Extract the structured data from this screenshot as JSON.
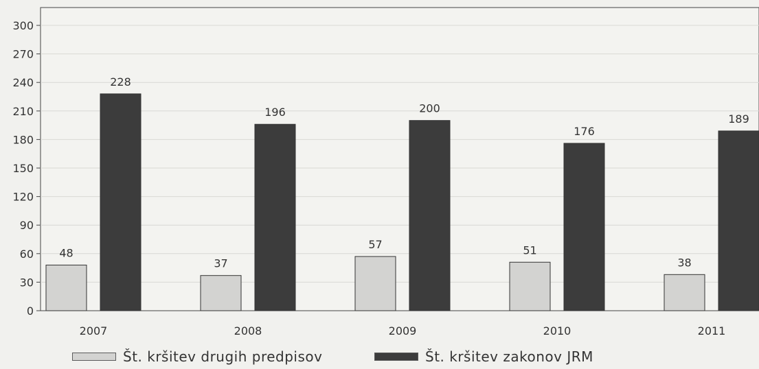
{
  "chart_data": {
    "type": "bar",
    "categories": [
      "2007",
      "2008",
      "2009",
      "2010",
      "2011"
    ],
    "series": [
      {
        "name": "Št. kršitev drugih predpisov",
        "values": [
          48,
          37,
          57,
          51,
          38
        ],
        "color": "#d3d3d1"
      },
      {
        "name": "Št. kršitev zakonov JRM",
        "values": [
          228,
          196,
          200,
          176,
          189
        ],
        "color": "#3c3c3c"
      }
    ],
    "yticks": [
      "0",
      "30",
      "60",
      "90",
      "120",
      "150",
      "180",
      "210",
      "240",
      "270",
      "300"
    ],
    "ylim": [
      0,
      300
    ],
    "grid": true,
    "legend_position": "bottom"
  }
}
